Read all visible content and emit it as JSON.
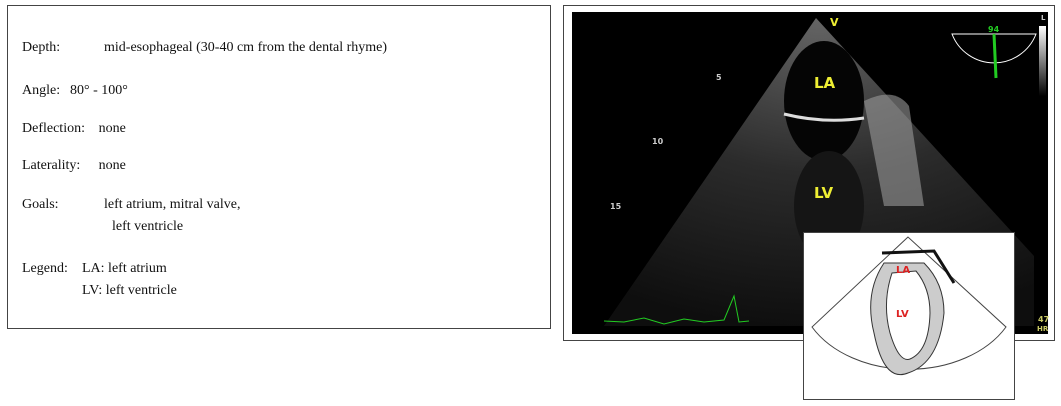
{
  "info": {
    "rows": [
      {
        "label": "Depth:",
        "lines": [
          "mid-esophageal (30-40 cm from the dental rhyme)"
        ]
      },
      {
        "label": "Angle:",
        "lines": [
          "80° - 100°"
        ]
      },
      {
        "label": "Deflection:",
        "lines": [
          "none"
        ]
      },
      {
        "label": "Laterality:",
        "lines": [
          "none"
        ]
      },
      {
        "label": "Goals:",
        "lines": [
          "left atrium, mitral valve,",
          "left ventricle"
        ]
      },
      {
        "label": "Legend:",
        "lines": [
          "LA: left atrium",
          "LV: left ventricle"
        ]
      }
    ]
  },
  "echo": {
    "probe_mark": "V",
    "la": "LA",
    "lv": "LV",
    "depth_marks": [
      "5",
      "10",
      "15"
    ],
    "angle": "94",
    "side": "L",
    "heart_rate": "47",
    "heart_rate_unit": "HR"
  },
  "inset": {
    "la": "LA",
    "lv": "LV"
  }
}
